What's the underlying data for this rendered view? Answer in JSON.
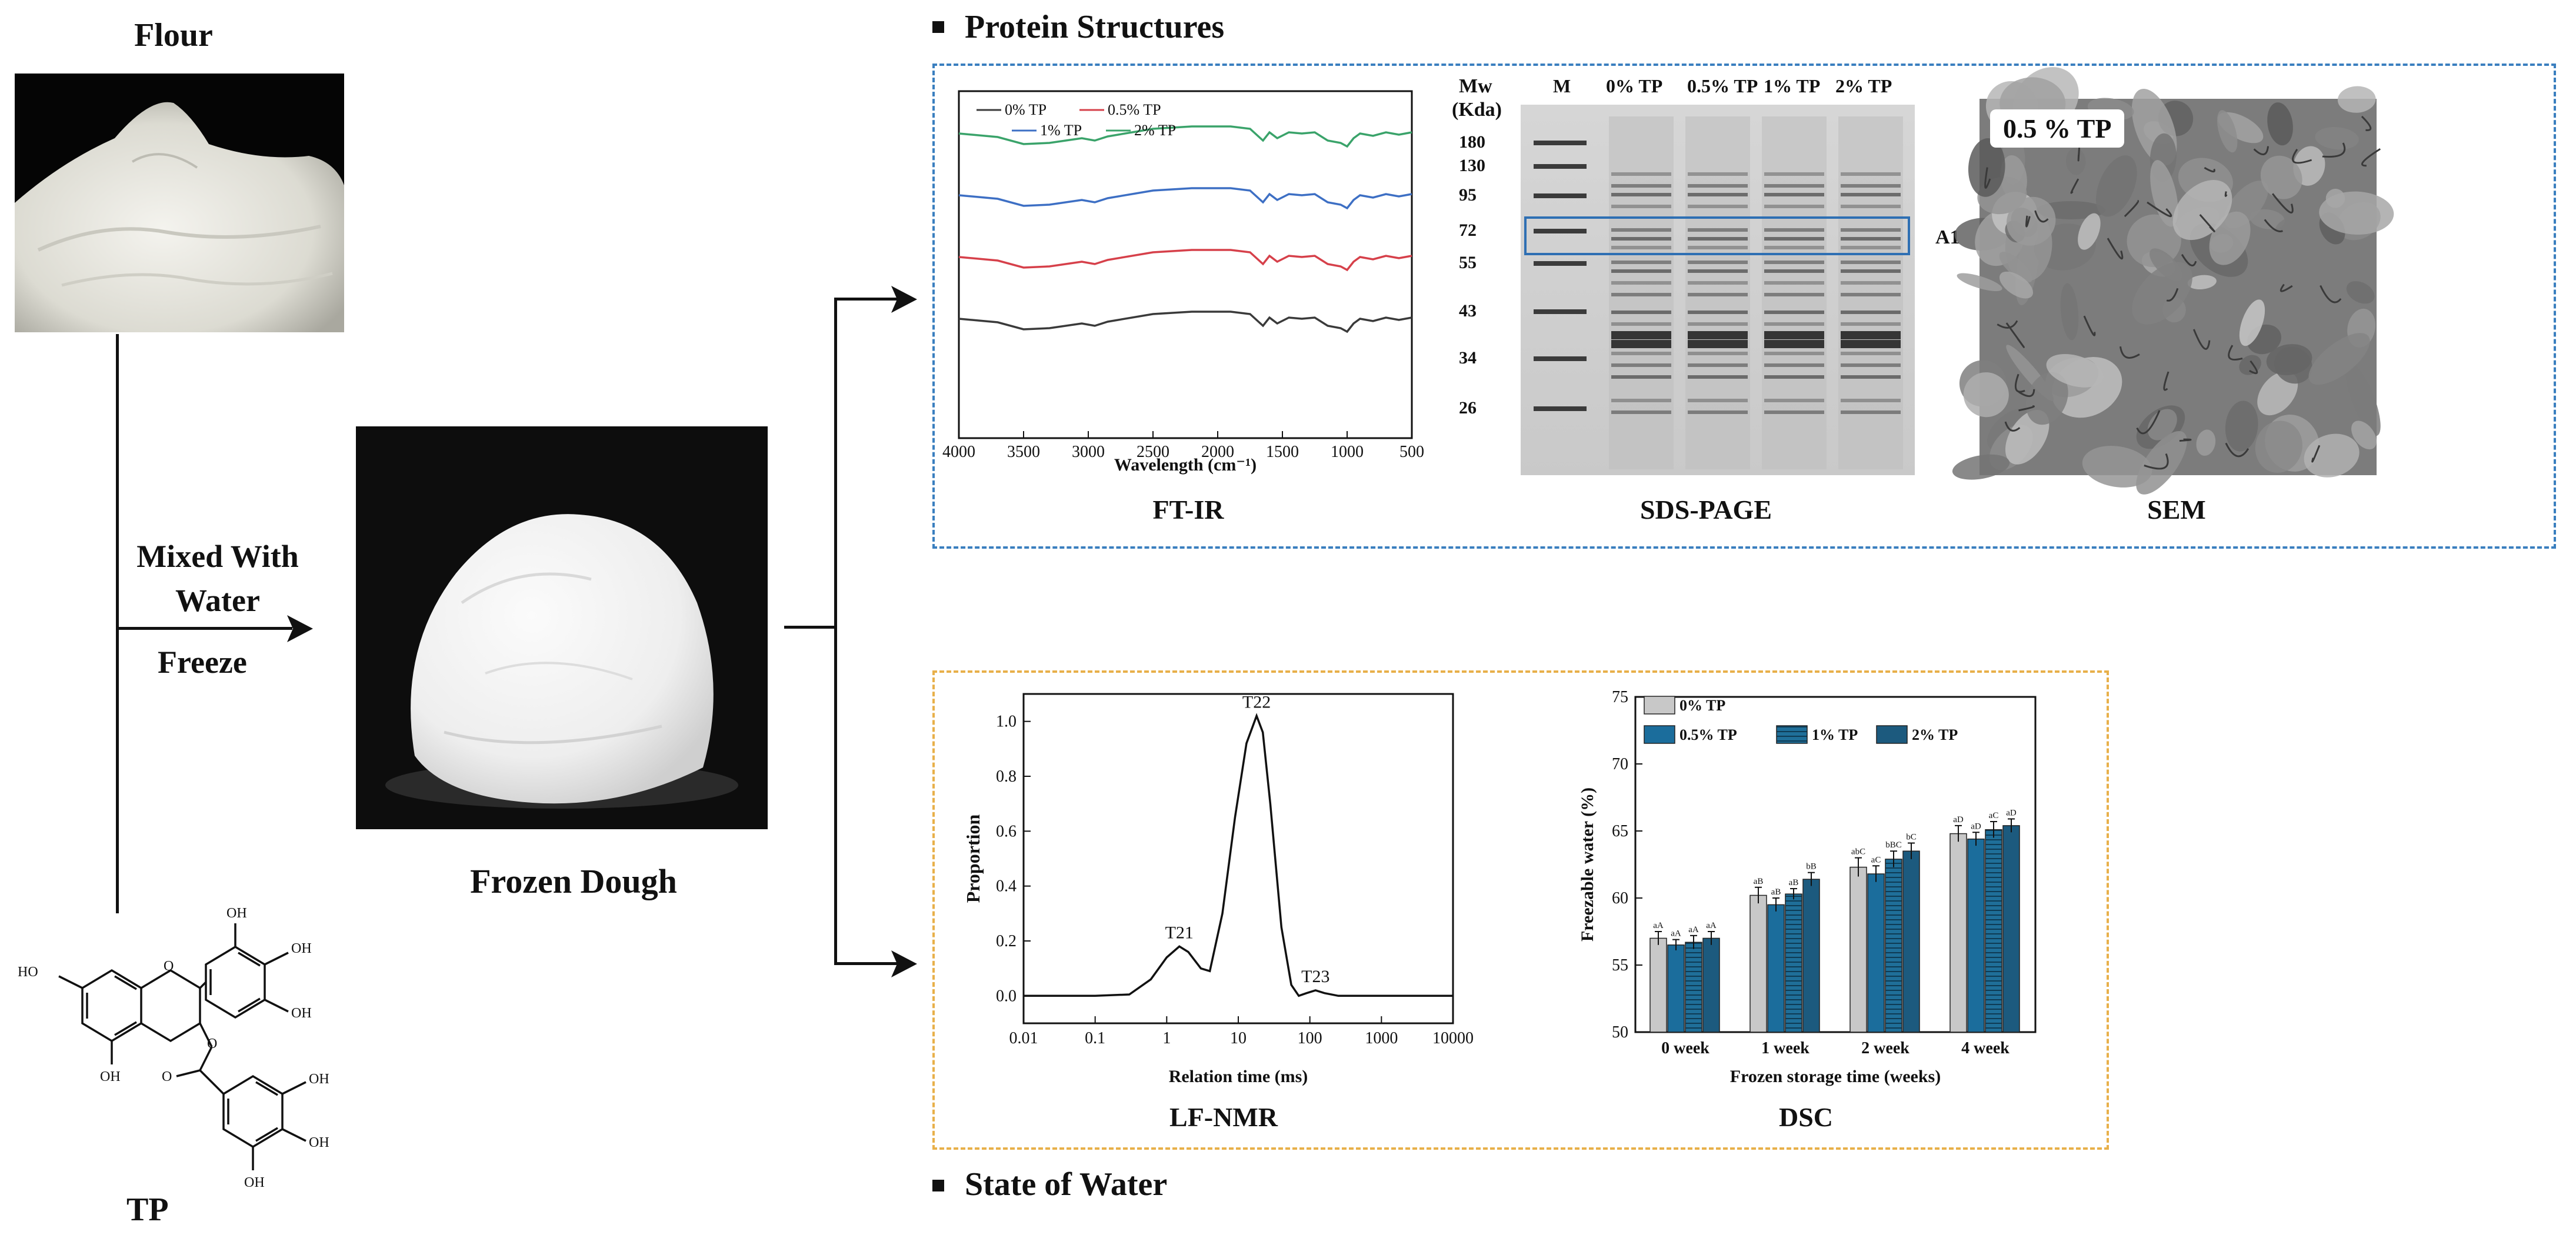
{
  "left": {
    "flour_label": "Flour",
    "tp_label": "TP",
    "dough_label": "Frozen Dough",
    "process_line1": "Mixed With",
    "process_line2": "Water",
    "process_line3": "Freeze",
    "oh_label": "OH",
    "o_label": "O",
    "ho_label": "HO"
  },
  "protein_section": {
    "title": "Protein Structures",
    "ftir": {
      "caption": "FT-IR",
      "xlabel": "Wavelength (cm⁻¹)",
      "ticks": [
        "4000",
        "3500",
        "3000",
        "2500",
        "2000",
        "1500",
        "1000",
        "500"
      ],
      "legend": [
        "0% TP",
        "0.5% TP",
        "1% TP",
        "2% TP"
      ],
      "colors": [
        "#3a3a3a",
        "#d6404a",
        "#3d6fc4",
        "#3aa36a"
      ]
    },
    "sds": {
      "caption": "SDS-PAGE",
      "mw_title_1": "Mw",
      "mw_title_2": "(Kda)",
      "markers": [
        "180",
        "130",
        "95",
        "72",
        "55",
        "43",
        "34",
        "26"
      ],
      "lane_labels": [
        "M",
        "0% TP",
        "0.5% TP",
        "1% TP",
        "2% TP"
      ],
      "band_label": "A1"
    },
    "sem": {
      "caption": "SEM",
      "tag": "0.5 % TP"
    }
  },
  "water_section": {
    "title": "State of Water",
    "lfnmr": {
      "caption": "LF-NMR",
      "xlabel": "Relation time (ms)",
      "ylabel": "Proportion",
      "xticks": [
        "0.01",
        "0.1",
        "1",
        "10",
        "100",
        "1000",
        "10000"
      ],
      "yticks": [
        "0.0",
        "0.2",
        "0.4",
        "0.6",
        "0.8",
        "1.0"
      ],
      "peaks": [
        "T21",
        "T22",
        "T23"
      ]
    },
    "dsc": {
      "caption": "DSC",
      "xlabel": "Frozen storage time (weeks)",
      "ylabel": "Freezable water (%)",
      "yticks": [
        "50",
        "55",
        "60",
        "65",
        "70",
        "75"
      ],
      "legend": [
        "0% TP",
        "0.5% TP",
        "1% TP",
        "2% TP"
      ],
      "colors": [
        "#c8c8c8",
        "#1b6d9c",
        "#1f6f99",
        "#1c5a7e"
      ]
    }
  },
  "chart_data": [
    {
      "type": "line",
      "title": "FT-IR",
      "xlabel": "Wavelength (cm⁻¹)",
      "xlim": [
        4000,
        500
      ],
      "series": [
        {
          "name": "0% TP",
          "x": [
            4000,
            3700,
            3500,
            3300,
            3050,
            2950,
            2850,
            2500,
            2200,
            1900,
            1750,
            1650,
            1600,
            1540,
            1450,
            1350,
            1250,
            1150,
            1050,
            1000,
            950,
            900,
            800,
            700,
            600,
            500
          ],
          "y": [
            0.78,
            0.72,
            0.6,
            0.62,
            0.7,
            0.66,
            0.73,
            0.86,
            0.9,
            0.9,
            0.86,
            0.66,
            0.8,
            0.7,
            0.8,
            0.78,
            0.8,
            0.66,
            0.62,
            0.56,
            0.7,
            0.78,
            0.74,
            0.8,
            0.76,
            0.8
          ]
        },
        {
          "name": "0.5% TP",
          "x": [
            4000,
            3700,
            3500,
            3300,
            3050,
            2950,
            2850,
            2500,
            2200,
            1900,
            1750,
            1650,
            1600,
            1540,
            1450,
            1350,
            1250,
            1150,
            1050,
            1000,
            950,
            900,
            800,
            700,
            600,
            500
          ],
          "y": [
            0.78,
            0.72,
            0.6,
            0.62,
            0.7,
            0.66,
            0.73,
            0.86,
            0.9,
            0.9,
            0.86,
            0.66,
            0.8,
            0.7,
            0.8,
            0.78,
            0.8,
            0.66,
            0.62,
            0.56,
            0.7,
            0.78,
            0.74,
            0.8,
            0.76,
            0.8
          ]
        },
        {
          "name": "1% TP",
          "x": [
            4000,
            3700,
            3500,
            3300,
            3050,
            2950,
            2850,
            2500,
            2200,
            1900,
            1750,
            1650,
            1600,
            1540,
            1450,
            1350,
            1250,
            1150,
            1050,
            1000,
            950,
            900,
            800,
            700,
            600,
            500
          ],
          "y": [
            0.78,
            0.72,
            0.6,
            0.62,
            0.7,
            0.66,
            0.73,
            0.86,
            0.9,
            0.9,
            0.86,
            0.66,
            0.8,
            0.7,
            0.8,
            0.78,
            0.8,
            0.66,
            0.62,
            0.56,
            0.7,
            0.78,
            0.74,
            0.8,
            0.76,
            0.8
          ]
        },
        {
          "name": "2% TP",
          "x": [
            4000,
            3700,
            3500,
            3300,
            3050,
            2950,
            2850,
            2500,
            2200,
            1900,
            1750,
            1650,
            1600,
            1540,
            1450,
            1350,
            1250,
            1150,
            1050,
            1000,
            950,
            900,
            800,
            700,
            600,
            500
          ],
          "y": [
            0.78,
            0.72,
            0.6,
            0.62,
            0.7,
            0.66,
            0.73,
            0.86,
            0.9,
            0.9,
            0.86,
            0.66,
            0.8,
            0.7,
            0.8,
            0.78,
            0.8,
            0.66,
            0.62,
            0.56,
            0.7,
            0.78,
            0.74,
            0.8,
            0.76,
            0.8
          ]
        }
      ]
    },
    {
      "type": "line",
      "title": "LF-NMR",
      "xlabel": "Relation time (ms)",
      "ylabel": "Proportion",
      "xscale": "log",
      "xlim": [
        0.01,
        10000
      ],
      "ylim": [
        -0.1,
        1.1
      ],
      "x": [
        0.01,
        0.1,
        0.3,
        0.6,
        1,
        1.5,
        2,
        3,
        4,
        6,
        9,
        13,
        18,
        22,
        28,
        40,
        55,
        70,
        90,
        120,
        160,
        250,
        1000,
        10000
      ],
      "values": [
        0,
        0,
        0.005,
        0.06,
        0.14,
        0.18,
        0.16,
        0.1,
        0.09,
        0.3,
        0.65,
        0.92,
        1.02,
        0.96,
        0.7,
        0.25,
        0.04,
        0.0,
        0.01,
        0.02,
        0.01,
        0,
        0,
        0
      ]
    },
    {
      "type": "bar",
      "title": "DSC",
      "xlabel": "Frozen storage time (weeks)",
      "ylabel": "Freezable water (%)",
      "ylim": [
        50,
        75
      ],
      "categories": [
        "0 week",
        "1 week",
        "2 week",
        "4 week"
      ],
      "series": [
        {
          "name": "0% TP",
          "values": [
            57.0,
            60.2,
            62.3,
            64.8
          ],
          "errors": [
            0.5,
            0.6,
            0.7,
            0.6
          ],
          "labels": [
            "aA",
            "aB",
            "abC",
            "aD"
          ]
        },
        {
          "name": "0.5% TP",
          "values": [
            56.5,
            59.5,
            61.8,
            64.4
          ],
          "errors": [
            0.4,
            0.5,
            0.6,
            0.5
          ],
          "labels": [
            "aA",
            "aB",
            "aC",
            "aD"
          ]
        },
        {
          "name": "1% TP",
          "values": [
            56.7,
            60.3,
            62.9,
            65.1
          ],
          "errors": [
            0.5,
            0.4,
            0.6,
            0.6
          ],
          "labels": [
            "aA",
            "aB",
            "bBC",
            "aC"
          ]
        },
        {
          "name": "2% TP",
          "values": [
            57.0,
            61.4,
            63.5,
            65.4
          ],
          "errors": [
            0.5,
            0.5,
            0.6,
            0.5
          ],
          "labels": [
            "aA",
            "bB",
            "bC",
            "aD"
          ]
        }
      ]
    }
  ]
}
